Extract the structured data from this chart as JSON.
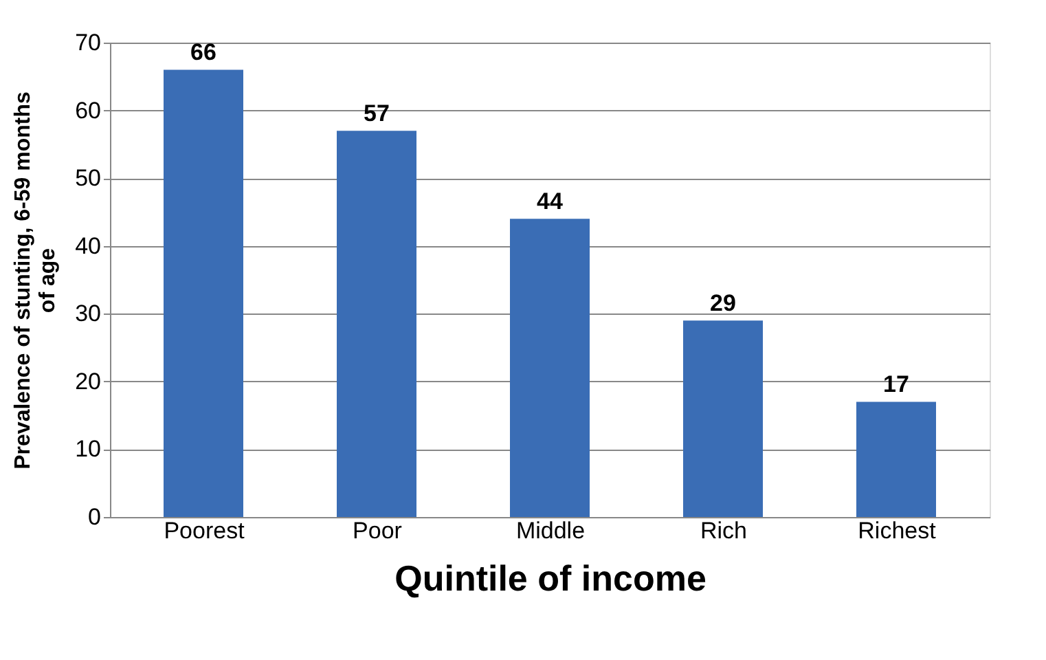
{
  "chart_data": {
    "type": "bar",
    "xlabel": "Quintile of income",
    "ylabel": "Prevalence of stunting, 6-59 months of age",
    "categories": [
      "Poorest",
      "Poor",
      "Middle",
      "Rich",
      "Richest"
    ],
    "values": [
      66,
      57,
      44,
      29,
      17
    ],
    "color": "#3a6db5",
    "ylim": [
      0,
      70
    ],
    "yticks": [
      0,
      10,
      20,
      30,
      40,
      50,
      60,
      70
    ],
    "grid": "y",
    "data_labels": true
  }
}
